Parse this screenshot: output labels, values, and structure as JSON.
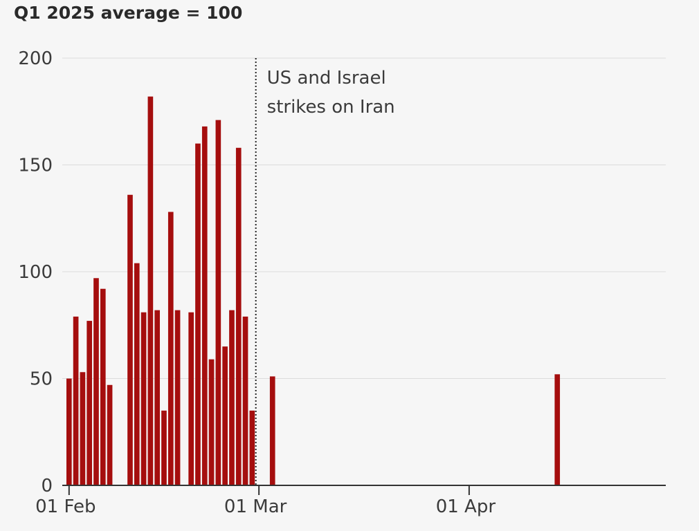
{
  "chart_data": {
    "type": "bar",
    "title": "",
    "subtitle": "Q1 2025 average = 100",
    "xlabel": "",
    "ylabel": "",
    "x_type": "date",
    "xlim": [
      "2026-01-31",
      "2026-04-30"
    ],
    "ylim": [
      0,
      200
    ],
    "y_ticks": [
      0,
      50,
      100,
      150,
      200
    ],
    "x_ticks": [
      {
        "date": "2026-02-01",
        "label": "01 Feb"
      },
      {
        "date": "2026-03-01",
        "label": "01 Mar"
      },
      {
        "date": "2026-04-01",
        "label": "01 Apr"
      }
    ],
    "grid": true,
    "bar_color": "#a50e0e",
    "series": [
      {
        "x": [
          "2026-02-01",
          "2026-02-02",
          "2026-02-03",
          "2026-02-04",
          "2026-02-05",
          "2026-02-06",
          "2026-02-07",
          "2026-02-10",
          "2026-02-11",
          "2026-02-12",
          "2026-02-13",
          "2026-02-14",
          "2026-02-15",
          "2026-02-16",
          "2026-02-17",
          "2026-02-19",
          "2026-02-20",
          "2026-02-21",
          "2026-02-22",
          "2026-02-23",
          "2026-02-24",
          "2026-02-25",
          "2026-02-26",
          "2026-02-27",
          "2026-02-28",
          "2026-03-03",
          "2026-04-14"
        ],
        "values": [
          50,
          79,
          53,
          77,
          97,
          92,
          47,
          136,
          104,
          81,
          182,
          82,
          35,
          128,
          82,
          81,
          160,
          168,
          59,
          171,
          65,
          82,
          158,
          79,
          35,
          51,
          52
        ]
      }
    ],
    "annotations": [
      {
        "type": "vline",
        "x": "2026-02-28",
        "style": "dotted",
        "text_lines": [
          "US and Israel",
          "strikes on Iran"
        ]
      }
    ]
  }
}
